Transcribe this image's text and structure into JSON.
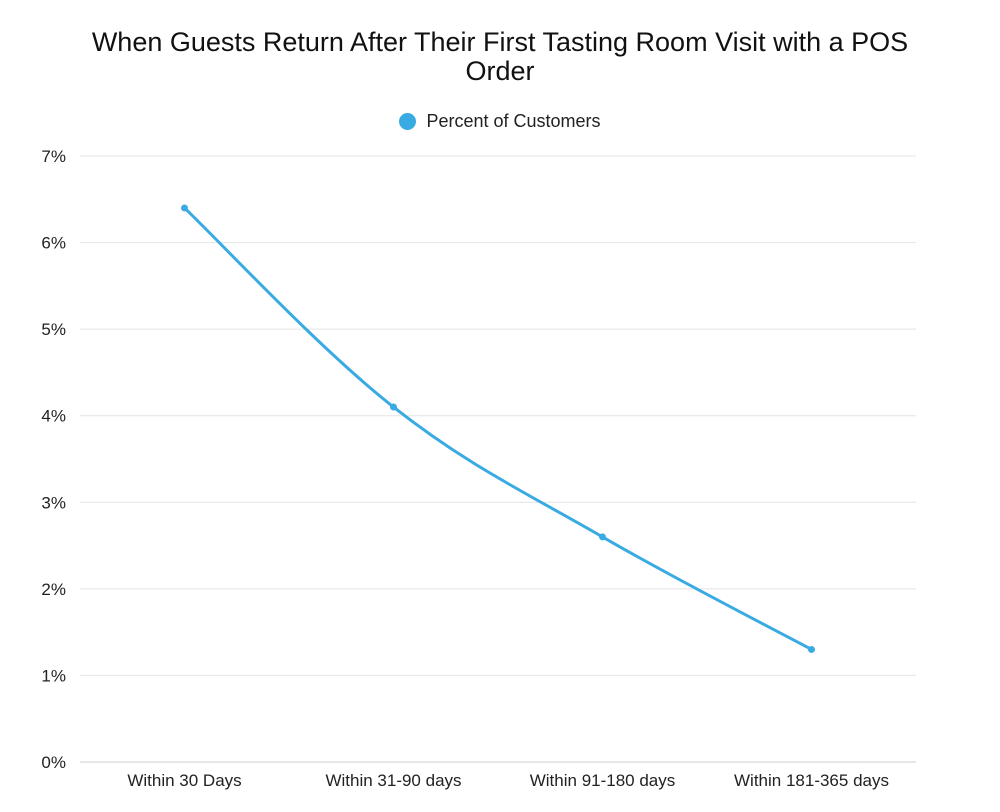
{
  "chart_data": {
    "type": "line",
    "title": "When Guests Return After Their First Tasting Room Visit with a POS Order",
    "xlabel": "",
    "ylabel": "",
    "categories": [
      "Within 30 Days",
      "Within 31-90 days",
      "Within 91-180 days",
      "Within 181-365 days"
    ],
    "series": [
      {
        "name": "Percent of Customers",
        "values": [
          6.4,
          4.1,
          2.6,
          1.3
        ]
      }
    ],
    "ylim": [
      0,
      7
    ],
    "yticks": [
      "0%",
      "1%",
      "2%",
      "3%",
      "4%",
      "5%",
      "6%",
      "7%"
    ],
    "grid": true,
    "legend_position": "top-center",
    "colors": {
      "series": "#3aabe2",
      "grid": "#e4e4e4",
      "axis": "#cfcfcf"
    }
  }
}
